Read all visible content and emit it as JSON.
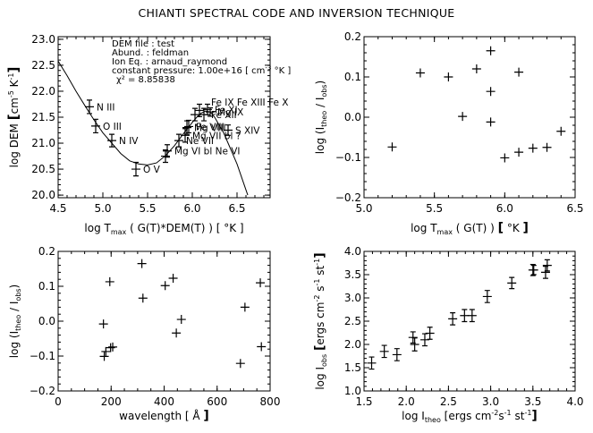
{
  "title": "CHIANTI SPECTRAL CODE AND INVERSION TECHNIQUE",
  "chart_data": [
    {
      "id": "dem",
      "type": "line",
      "title": "",
      "xlabel": "log T_max ( G(T)*DEM(T) ) [ °K ]",
      "xlabel_parts": {
        "pre": "log T",
        "sub": "max",
        "post": " ( G(T)*DEM(T) ) [ °K ]"
      },
      "ylabel": "log DEM [cm^-5 K^-1]",
      "ylabel_parts": {
        "pre": "log DEM  [cm",
        "sup1": "-5",
        "mid": " K",
        "sup2": "-1",
        "post": "]"
      },
      "xlim": [
        4.5,
        6.87
      ],
      "ylim": [
        19.95,
        23.05
      ],
      "xticks": [
        4.5,
        5.0,
        5.5,
        6.0,
        6.5
      ],
      "xtick_labels": [
        "4.5",
        "5.0",
        "5.5",
        "6.0",
        "6.5"
      ],
      "yticks": [
        20.0,
        20.5,
        21.0,
        21.5,
        22.0,
        22.5,
        23.0
      ],
      "ytick_labels": [
        "20.0",
        "20.5",
        "21.0",
        "21.5",
        "22.0",
        "22.5",
        "23.0"
      ],
      "annotation_lines": [
        "DEM file   : test",
        "Abund.   : feldman",
        "Ion Eq. : arnaud_raymond",
        "constant pressure: 1.00e+16 [ cm^-3 °K ]",
        "χ² =          8.85838"
      ],
      "curve": {
        "x": [
          4.5,
          4.6,
          4.7,
          4.8,
          4.9,
          5.0,
          5.1,
          5.2,
          5.3,
          5.4,
          5.5,
          5.6,
          5.7,
          5.8,
          5.9,
          6.0,
          6.05,
          6.1,
          6.15,
          6.2,
          6.25,
          6.3,
          6.35,
          6.4,
          6.45,
          6.5,
          6.55,
          6.6,
          6.62
        ],
        "y": [
          22.58,
          22.3,
          22.0,
          21.72,
          21.45,
          21.2,
          21.0,
          20.8,
          20.66,
          20.6,
          20.58,
          20.62,
          20.76,
          20.95,
          21.18,
          21.4,
          21.5,
          21.58,
          21.62,
          21.6,
          21.5,
          21.35,
          21.2,
          21.0,
          20.8,
          20.6,
          20.35,
          20.1,
          20.0
        ]
      },
      "points": [
        {
          "x": 4.85,
          "y": 21.7,
          "err": 0.13,
          "label": "N   III"
        },
        {
          "x": 4.92,
          "y": 21.33,
          "err": 0.13,
          "label": "O   III"
        },
        {
          "x": 5.1,
          "y": 21.05,
          "err": 0.12,
          "label": "N   IV"
        },
        {
          "x": 5.37,
          "y": 20.5,
          "err": 0.13,
          "label": "O   V"
        },
        {
          "x": 5.7,
          "y": 20.75,
          "err": 0.12,
          "label": ""
        },
        {
          "x": 5.72,
          "y": 20.85,
          "err": 0.12,
          "label": "Mg VI bl Ne VI"
        },
        {
          "x": 5.85,
          "y": 21.05,
          "err": 0.12,
          "label": "Ne VII"
        },
        {
          "x": 5.92,
          "y": 21.15,
          "err": 0.13,
          "label": "Mg VII bl ?"
        },
        {
          "x": 5.94,
          "y": 21.3,
          "err": 0.13,
          "label": "Mg VIII"
        },
        {
          "x": 5.96,
          "y": 21.32,
          "err": 0.12,
          "label": "Fe VIII"
        },
        {
          "x": 6.03,
          "y": 21.55,
          "err": 0.12,
          "label": ""
        },
        {
          "x": 6.08,
          "y": 21.63,
          "err": 0.12,
          "label": ""
        },
        {
          "x": 6.13,
          "y": 21.55,
          "err": 0.12,
          "label": "Fe XII"
        },
        {
          "x": 6.17,
          "y": 21.65,
          "err": 0.1,
          "label": "Fe XI"
        },
        {
          "x": 6.2,
          "y": 21.6,
          "err": 0.08,
          "label": "Mg IX"
        },
        {
          "x": 6.4,
          "y": 21.25,
          "err": 0.1,
          "label": "S   XIV"
        }
      ],
      "cluster_labels": [
        "Fe IX",
        "Fe XIII",
        "Fe X"
      ]
    },
    {
      "id": "ratio-vs-t",
      "type": "scatter",
      "xlabel": "log T_max ( G(T) ) [ °K ]",
      "xlabel_parts": {
        "pre": "log T",
        "sub": "max",
        "post": " ( G(T) ) [ °K ]"
      },
      "ylabel": "log (I_theo / I_obs)",
      "ylabel_parts": {
        "pre": "log (I",
        "sub1": "theo",
        "mid": " / I",
        "sub2": "obs",
        "post": ")"
      },
      "xlim": [
        5.0,
        6.5
      ],
      "ylim": [
        -0.2,
        0.2
      ],
      "xticks": [
        5.0,
        5.5,
        6.0,
        6.5
      ],
      "xtick_labels": [
        "5.0",
        "5.5",
        "6.0",
        "6.5"
      ],
      "yticks": [
        -0.2,
        -0.1,
        0.0,
        0.1,
        0.2
      ],
      "ytick_labels": [
        "-0.2",
        "-0.1",
        "0.0",
        "0.1",
        "0.2"
      ],
      "x": [
        5.2,
        5.4,
        5.6,
        5.7,
        5.8,
        5.9,
        5.9,
        5.9,
        6.0,
        6.1,
        6.1,
        6.2,
        6.3,
        6.4
      ],
      "y": [
        -0.074,
        0.11,
        0.1,
        0.002,
        0.12,
        0.165,
        0.064,
        -0.012,
        -0.101,
        -0.087,
        0.112,
        -0.077,
        -0.075,
        -0.035
      ]
    },
    {
      "id": "ratio-vs-wavelength",
      "type": "scatter",
      "xlabel": "wavelength [ Å ]",
      "ylabel": "log (I_theo / I_obs)",
      "ylabel_parts": {
        "pre": "log (I",
        "sub1": "theo",
        "mid": " / I",
        "sub2": "obs",
        "post": ")"
      },
      "xlim": [
        0,
        800
      ],
      "ylim": [
        -0.2,
        0.2
      ],
      "xticks": [
        0,
        200,
        400,
        600,
        800
      ],
      "xtick_labels": [
        "0",
        "200",
        "400",
        "600",
        "800"
      ],
      "yticks": [
        -0.2,
        -0.1,
        0.0,
        0.1,
        0.2
      ],
      "ytick_labels": [
        "-0.2",
        "-0.1",
        "0.0",
        "0.1",
        "0.2"
      ],
      "x": [
        171,
        174,
        180,
        195,
        198,
        206,
        316,
        320,
        404,
        434,
        446,
        465,
        688,
        705,
        763,
        767
      ],
      "y": [
        -0.008,
        -0.101,
        -0.087,
        0.113,
        -0.076,
        -0.074,
        0.165,
        0.066,
        0.102,
        0.123,
        -0.034,
        0.005,
        -0.121,
        0.04,
        0.11,
        -0.073
      ]
    },
    {
      "id": "obs-vs-theo",
      "type": "scatter",
      "xlabel": "log I_theo [ergs cm^-2 s^-1 st^-1]",
      "xlabel_parts": {
        "pre": "log I",
        "sub": "theo",
        "post": "  [ergs cm",
        "sup1": "-2",
        "mid": "s",
        "sup2": "-1",
        "mid2": "st",
        "sup3": "-1",
        "end": "]"
      },
      "ylabel": "log I_obs [ergs cm^-2 s^-1 st^-1]",
      "xlim": [
        1.5,
        4.0
      ],
      "ylim": [
        1.0,
        4.0
      ],
      "xticks": [
        1.5,
        2.0,
        2.5,
        3.0,
        3.5,
        4.0
      ],
      "xtick_labels": [
        "1.5",
        "2.0",
        "2.5",
        "3.0",
        "3.5",
        "4.0"
      ],
      "yticks": [
        1.0,
        1.5,
        2.0,
        2.5,
        3.0,
        3.5,
        4.0
      ],
      "ytick_labels": [
        "1.0",
        "1.5",
        "2.0",
        "2.5",
        "3.0",
        "3.5",
        "4.0"
      ],
      "x": [
        1.59,
        1.74,
        1.89,
        2.08,
        2.1,
        2.22,
        2.28,
        2.55,
        2.69,
        2.78,
        2.96,
        3.25,
        3.5,
        3.51,
        3.65,
        3.67
      ],
      "y": [
        1.6,
        1.85,
        1.78,
        2.15,
        2.0,
        2.1,
        2.24,
        2.55,
        2.62,
        2.62,
        3.03,
        3.32,
        3.6,
        3.6,
        3.55,
        3.7
      ],
      "yerr": [
        0.13,
        0.13,
        0.13,
        0.12,
        0.14,
        0.13,
        0.13,
        0.13,
        0.13,
        0.13,
        0.13,
        0.12,
        0.12,
        0.1,
        0.13,
        0.12
      ]
    }
  ]
}
